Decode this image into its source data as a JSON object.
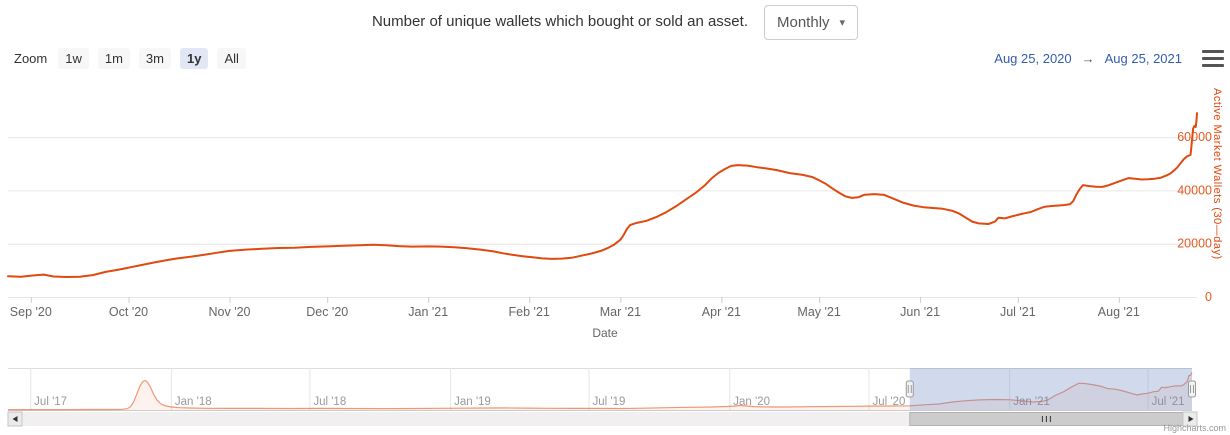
{
  "header": {
    "title": "Number of unique wallets which bought or sold an asset.",
    "frequency": {
      "value": "Monthly",
      "caret": "▾"
    }
  },
  "range_selector": {
    "zoom_label": "Zoom",
    "buttons": [
      {
        "label": "1w",
        "selected": false
      },
      {
        "label": "1m",
        "selected": false
      },
      {
        "label": "3m",
        "selected": false
      },
      {
        "label": "1y",
        "selected": true
      },
      {
        "label": "All",
        "selected": false
      }
    ],
    "from_date": "Aug 25, 2020",
    "arrow": "→",
    "to_date": "Aug 25, 2021"
  },
  "icons": {
    "context_menu": "hamburger-icon",
    "select_caret": "chevron-down-icon",
    "scrollbar_left": "left-arrow-icon",
    "scrollbar_right": "right-arrow-icon"
  },
  "colors": {
    "series": "#e0490f",
    "axis_label": "#e25a1e",
    "nav_line": "rgba(224,73,16,0.55)",
    "nav_fill": "rgba(233,94,36,0.08)",
    "mask": "rgba(102,133,194,0.3)",
    "grid": "#e6e6e6",
    "tick_text": "#666666",
    "nav_text": "#999999",
    "date_text": "#335cad"
  },
  "credits": "Highcharts.com",
  "chart_data": {
    "type": "line",
    "title": "Number of unique wallets which bought or sold an asset.",
    "xlabel": "Date",
    "ylabel": "Active Market Wallets (30—day)",
    "legend": "none",
    "grid": "horizontal",
    "visible_range": [
      "Aug 25, 2020",
      "Aug 25, 2021"
    ],
    "y_ticks": [
      0,
      20000,
      40000,
      60000
    ],
    "ylim": [
      0,
      79500
    ],
    "x_ticks": [
      {
        "day": 7,
        "label": "Sep '20"
      },
      {
        "day": 37,
        "label": "Oct '20"
      },
      {
        "day": 68,
        "label": "Nov '20"
      },
      {
        "day": 98,
        "label": "Dec '20"
      },
      {
        "day": 129,
        "label": "Jan '21"
      },
      {
        "day": 160,
        "label": "Feb '21"
      },
      {
        "day": 188,
        "label": "Mar '21"
      },
      {
        "day": 219,
        "label": "Apr '21"
      },
      {
        "day": 249,
        "label": "May '21"
      },
      {
        "day": 280,
        "label": "Jun '21"
      },
      {
        "day": 310,
        "label": "Jul '21"
      },
      {
        "day": 341,
        "label": "Aug '21"
      }
    ],
    "series": [
      {
        "name": "Active Market Wallets (30-day)",
        "x_unit": "days since Aug 25, 2020",
        "points": [
          [
            0,
            7800
          ],
          [
            4,
            7600
          ],
          [
            8,
            8100
          ],
          [
            11,
            8400
          ],
          [
            14,
            7700
          ],
          [
            18,
            7500
          ],
          [
            22,
            7600
          ],
          [
            26,
            8200
          ],
          [
            30,
            9400
          ],
          [
            34,
            10300
          ],
          [
            37,
            11000
          ],
          [
            41,
            12000
          ],
          [
            45,
            13000
          ],
          [
            49,
            13900
          ],
          [
            52,
            14500
          ],
          [
            56,
            15100
          ],
          [
            60,
            15800
          ],
          [
            64,
            16600
          ],
          [
            68,
            17300
          ],
          [
            73,
            17800
          ],
          [
            78,
            18100
          ],
          [
            83,
            18400
          ],
          [
            88,
            18500
          ],
          [
            93,
            18800
          ],
          [
            98,
            19000
          ],
          [
            103,
            19200
          ],
          [
            108,
            19400
          ],
          [
            112,
            19600
          ],
          [
            116,
            19400
          ],
          [
            120,
            19100
          ],
          [
            124,
            18900
          ],
          [
            129,
            19000
          ],
          [
            133,
            18900
          ],
          [
            137,
            18700
          ],
          [
            141,
            18300
          ],
          [
            145,
            17800
          ],
          [
            149,
            17100
          ],
          [
            152,
            16400
          ],
          [
            155,
            15800
          ],
          [
            158,
            15300
          ],
          [
            161,
            14900
          ],
          [
            164,
            14500
          ],
          [
            167,
            14300
          ],
          [
            170,
            14400
          ],
          [
            173,
            14700
          ],
          [
            176,
            15500
          ],
          [
            179,
            16300
          ],
          [
            182,
            17300
          ],
          [
            184,
            18300
          ],
          [
            186,
            19600
          ],
          [
            188,
            21500
          ],
          [
            189,
            23300
          ],
          [
            190,
            25500
          ],
          [
            191,
            27000
          ],
          [
            193,
            27800
          ],
          [
            196,
            28600
          ],
          [
            199,
            30000
          ],
          [
            202,
            31800
          ],
          [
            205,
            34000
          ],
          [
            208,
            36500
          ],
          [
            211,
            39000
          ],
          [
            214,
            42000
          ],
          [
            216,
            44500
          ],
          [
            218,
            46500
          ],
          [
            220,
            48000
          ],
          [
            222,
            49200
          ],
          [
            224,
            49500
          ],
          [
            227,
            49300
          ],
          [
            230,
            48700
          ],
          [
            233,
            48200
          ],
          [
            236,
            47600
          ],
          [
            240,
            46500
          ],
          [
            244,
            45800
          ],
          [
            247,
            45000
          ],
          [
            249,
            43800
          ],
          [
            251,
            42500
          ],
          [
            253,
            40800
          ],
          [
            255,
            39200
          ],
          [
            257,
            37800
          ],
          [
            259,
            37200
          ],
          [
            261,
            37400
          ],
          [
            263,
            38400
          ],
          [
            266,
            38600
          ],
          [
            269,
            38300
          ],
          [
            272,
            36800
          ],
          [
            275,
            35300
          ],
          [
            278,
            34300
          ],
          [
            281,
            33700
          ],
          [
            284,
            33400
          ],
          [
            287,
            33100
          ],
          [
            290,
            32300
          ],
          [
            292,
            31300
          ],
          [
            294,
            29800
          ],
          [
            296,
            28300
          ],
          [
            298,
            27600
          ],
          [
            301,
            27400
          ],
          [
            303,
            28300
          ],
          [
            304,
            29700
          ],
          [
            306,
            29500
          ],
          [
            308,
            30200
          ],
          [
            310,
            30800
          ],
          [
            312,
            31400
          ],
          [
            314,
            31900
          ],
          [
            316,
            32900
          ],
          [
            318,
            33800
          ],
          [
            320,
            34100
          ],
          [
            322,
            34300
          ],
          [
            324,
            34500
          ],
          [
            326,
            34800
          ],
          [
            327,
            36000
          ],
          [
            328,
            38500
          ],
          [
            329,
            40500
          ],
          [
            330,
            42000
          ],
          [
            332,
            41600
          ],
          [
            334,
            41400
          ],
          [
            336,
            41300
          ],
          [
            338,
            42000
          ],
          [
            340,
            42900
          ],
          [
            342,
            43800
          ],
          [
            344,
            44600
          ],
          [
            346,
            44400
          ],
          [
            348,
            44100
          ],
          [
            350,
            44200
          ],
          [
            352,
            44400
          ],
          [
            354,
            44800
          ],
          [
            356,
            45800
          ],
          [
            357,
            46500
          ],
          [
            358,
            47500
          ],
          [
            359,
            48700
          ],
          [
            360,
            50300
          ],
          [
            361,
            51800
          ],
          [
            362,
            52800
          ],
          [
            363,
            53300
          ],
          [
            363.4,
            58000
          ],
          [
            363.8,
            63200
          ],
          [
            364.2,
            64200
          ],
          [
            364.6,
            63800
          ],
          [
            364.8,
            65500
          ],
          [
            365,
            69000
          ]
        ]
      }
    ],
    "navigator": {
      "x_unit": "days since Jun 2, 2017",
      "ticks": [
        {
          "day": 29,
          "label": "Jul '17"
        },
        {
          "day": 213,
          "label": "Jan '18"
        },
        {
          "day": 394,
          "label": "Jul '18"
        },
        {
          "day": 578,
          "label": "Jan '19"
        },
        {
          "day": 759,
          "label": "Jul '19"
        },
        {
          "day": 943,
          "label": "Jan '20"
        },
        {
          "day": 1125,
          "label": "Jul '20"
        },
        {
          "day": 1309,
          "label": "Jan '21"
        },
        {
          "day": 1490,
          "label": "Jul '21"
        }
      ],
      "selection": {
        "start_day": 1179,
        "end_day": 1548
      },
      "points": [
        [
          0,
          700
        ],
        [
          60,
          800
        ],
        [
          110,
          900
        ],
        [
          140,
          1000
        ],
        [
          150,
          1300
        ],
        [
          156,
          2500
        ],
        [
          160,
          6000
        ],
        [
          164,
          14000
        ],
        [
          168,
          28000
        ],
        [
          172,
          43000
        ],
        [
          176,
          52000
        ],
        [
          179,
          54500
        ],
        [
          182,
          52000
        ],
        [
          186,
          43000
        ],
        [
          190,
          30000
        ],
        [
          195,
          18000
        ],
        [
          200,
          11000
        ],
        [
          206,
          7500
        ],
        [
          214,
          5500
        ],
        [
          225,
          4200
        ],
        [
          240,
          3600
        ],
        [
          260,
          3200
        ],
        [
          290,
          3000
        ],
        [
          330,
          2900
        ],
        [
          370,
          2800
        ],
        [
          410,
          2900
        ],
        [
          450,
          2700
        ],
        [
          490,
          2600
        ],
        [
          530,
          2700
        ],
        [
          560,
          3100
        ],
        [
          590,
          3400
        ],
        [
          620,
          3600
        ],
        [
          650,
          3800
        ],
        [
          680,
          3500
        ],
        [
          710,
          3200
        ],
        [
          740,
          3000
        ],
        [
          770,
          2900
        ],
        [
          800,
          2800
        ],
        [
          830,
          3300
        ],
        [
          860,
          4300
        ],
        [
          890,
          5000
        ],
        [
          920,
          5600
        ],
        [
          940,
          6400
        ],
        [
          950,
          7300
        ],
        [
          958,
          8200
        ],
        [
          966,
          7400
        ],
        [
          975,
          6300
        ],
        [
          990,
          5800
        ],
        [
          1010,
          5500
        ],
        [
          1030,
          5700
        ],
        [
          1050,
          6000
        ],
        [
          1075,
          6400
        ],
        [
          1100,
          6800
        ],
        [
          1125,
          7100
        ],
        [
          1150,
          7400
        ],
        [
          1179,
          7800
        ],
        [
          1200,
          9800
        ],
        [
          1217,
          11000
        ],
        [
          1235,
          14800
        ],
        [
          1250,
          17000
        ],
        [
          1270,
          18600
        ],
        [
          1290,
          19400
        ],
        [
          1308,
          19000
        ],
        [
          1325,
          17200
        ],
        [
          1340,
          14800
        ],
        [
          1352,
          15800
        ],
        [
          1360,
          19000
        ],
        [
          1370,
          27500
        ],
        [
          1380,
          33500
        ],
        [
          1390,
          42000
        ],
        [
          1400,
          49300
        ],
        [
          1408,
          48800
        ],
        [
          1418,
          46800
        ],
        [
          1428,
          44000
        ],
        [
          1438,
          39500
        ],
        [
          1448,
          38300
        ],
        [
          1458,
          35000
        ],
        [
          1468,
          31000
        ],
        [
          1476,
          27600
        ],
        [
          1482,
          29500
        ],
        [
          1490,
          30800
        ],
        [
          1497,
          33600
        ],
        [
          1504,
          34700
        ],
        [
          1506,
          38000
        ],
        [
          1508,
          42000
        ],
        [
          1513,
          41300
        ],
        [
          1520,
          43000
        ],
        [
          1527,
          44600
        ],
        [
          1533,
          44400
        ],
        [
          1537,
          46500
        ],
        [
          1540,
          50300
        ],
        [
          1542,
          53300
        ],
        [
          1544,
          63300
        ],
        [
          1546,
          64000
        ],
        [
          1548,
          69000
        ]
      ]
    }
  }
}
